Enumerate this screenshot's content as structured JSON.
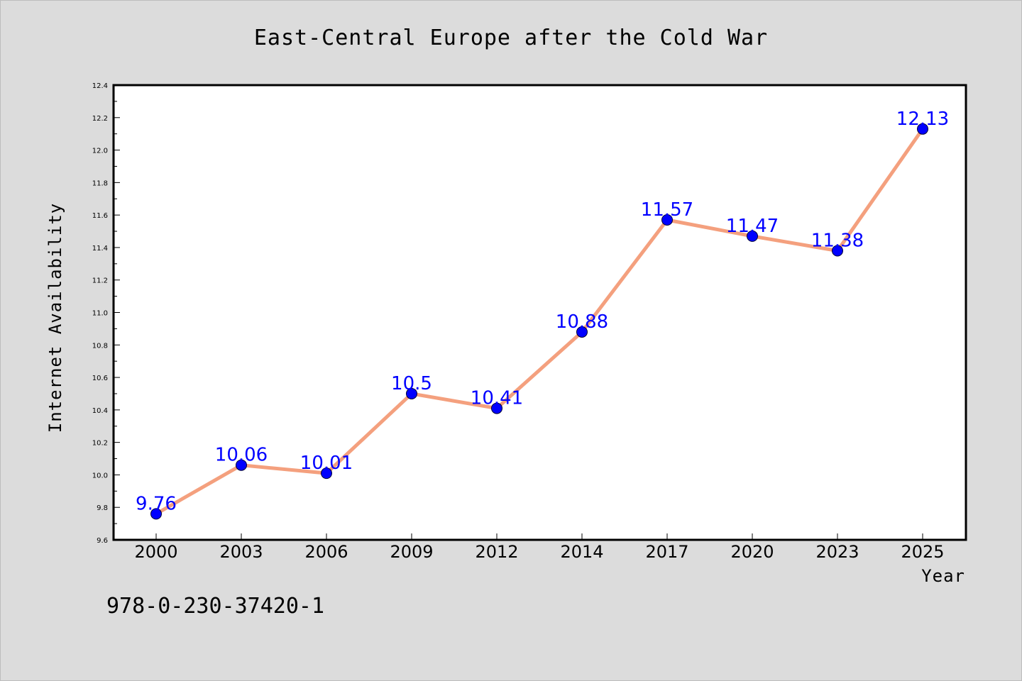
{
  "chart_data": {
    "type": "line",
    "title": "East-Central Europe after the Cold War",
    "xlabel": "Year",
    "ylabel": "Internet Availability",
    "categories": [
      "2000",
      "2003",
      "2006",
      "2009",
      "2012",
      "2014",
      "2017",
      "2020",
      "2023",
      "2025"
    ],
    "series": [
      {
        "values": [
          9.76,
          10.06,
          10.01,
          10.5,
          10.41,
          10.88,
          11.57,
          11.47,
          11.38,
          12.13
        ],
        "labels": [
          "9.76",
          "10.06",
          "10.01",
          "10.5",
          "10.41",
          "10.88",
          "11.57",
          "11.47",
          "11.38",
          "12.13"
        ],
        "line_color": "#f4a07e",
        "marker_color": "#0000ff"
      }
    ],
    "ylim": [
      9.6,
      12.4
    ],
    "y_ticks": [
      "9.6",
      "9.8",
      "10.0",
      "10.2",
      "10.4",
      "10.6",
      "10.8",
      "11.0",
      "11.2",
      "11.4",
      "11.6",
      "11.8",
      "12.0",
      "12.2",
      "12.4"
    ],
    "grid": false,
    "legend": "none"
  },
  "footer": {
    "isbn": "978-0-230-37420-1"
  },
  "colors": {
    "background": "#dcdcdc",
    "plot_background": "#ffffff",
    "data_label": "#0000ff"
  }
}
